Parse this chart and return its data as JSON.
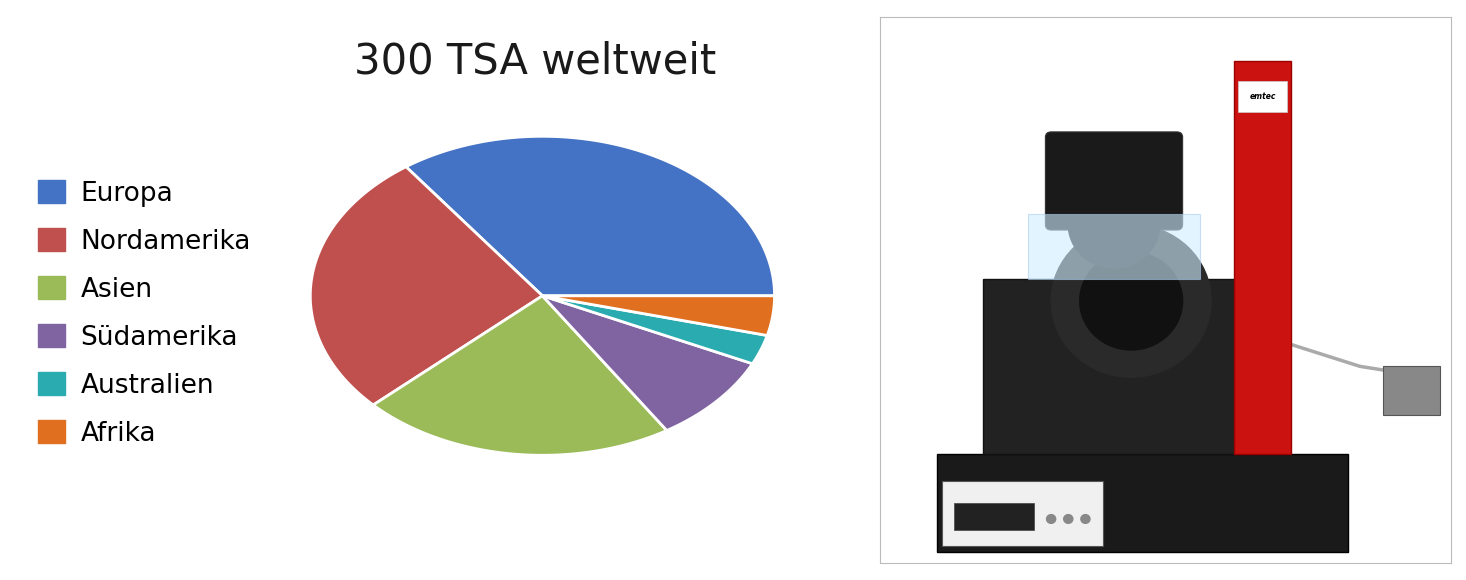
{
  "title": "300 TSA weltweit",
  "title_fontsize": 30,
  "slices": [
    {
      "label": "Europa",
      "value": 35,
      "color": "#4472C4"
    },
    {
      "label": "Nordamerika",
      "value": 27,
      "color": "#C0504D"
    },
    {
      "label": "Asien",
      "value": 22,
      "color": "#9BBB59"
    },
    {
      "label": "Südamerika",
      "value": 9,
      "color": "#8064A2"
    },
    {
      "label": "Australien",
      "value": 3,
      "color": "#29ABB0"
    },
    {
      "label": "Afrika",
      "value": 4,
      "color": "#E07020"
    }
  ],
  "legend_fontsize": 19,
  "bg_color": "#ffffff",
  "startangle": 90,
  "pie_aspect": 0.75,
  "wedge_edge_color": "#ffffff",
  "wedge_linewidth": 2.0
}
